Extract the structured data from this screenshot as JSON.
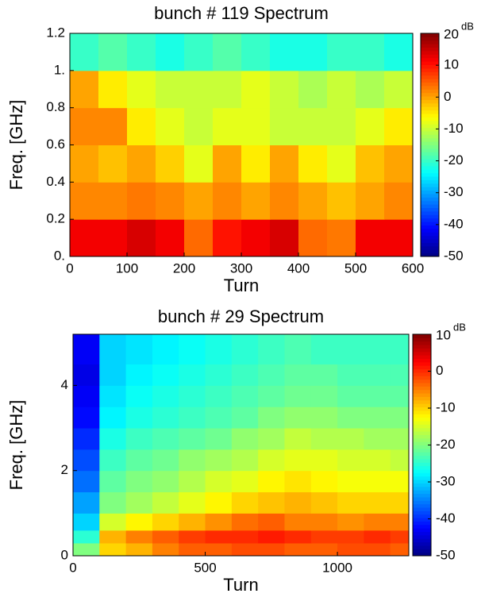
{
  "chart_data": [
    {
      "type": "heatmap",
      "title": "bunch # 119 Spectrum",
      "xlabel": "Turn",
      "ylabel": "Freq. [GHz]",
      "xlim": [
        0,
        600
      ],
      "ylim": [
        0,
        1.2
      ],
      "xticks": [
        0,
        100,
        200,
        300,
        400,
        500,
        600
      ],
      "yticks": [
        {
          "value": 0,
          "label": "0."
        },
        0.2,
        0.4,
        0.6,
        0.8,
        {
          "value": 1,
          "label": "1."
        },
        1.2
      ],
      "x_bins": [
        0,
        50,
        100,
        150,
        200,
        250,
        300,
        350,
        400,
        450,
        500,
        550,
        600
      ],
      "y_bins": [
        0,
        0.2,
        0.4,
        0.6,
        0.8,
        1.0,
        1.2
      ],
      "z": [
        [
          12,
          12,
          14,
          12,
          4,
          10,
          12,
          14,
          4,
          3,
          12,
          12
        ],
        [
          2,
          2,
          3,
          2,
          0,
          2,
          0,
          2,
          0,
          -2,
          0,
          2
        ],
        [
          0,
          -2,
          0,
          -3,
          -8,
          0,
          -5,
          0,
          -5,
          -8,
          -2,
          0
        ],
        [
          2,
          2,
          -5,
          -8,
          -10,
          -8,
          -8,
          -10,
          -10,
          -10,
          -8,
          -5
        ],
        [
          0,
          -5,
          -8,
          -10,
          -10,
          -10,
          -8,
          -10,
          -12,
          -10,
          -12,
          -10
        ],
        [
          -20,
          -18,
          -20,
          -22,
          -20,
          -18,
          -20,
          -22,
          -22,
          -20,
          -20,
          -22
        ]
      ],
      "clim": [
        -50,
        20
      ],
      "cticks": [
        20,
        10,
        0,
        -10,
        -20,
        -30,
        -40,
        -50
      ],
      "cunit": "dB"
    },
    {
      "type": "heatmap",
      "title": "bunch # 29 Spectrum",
      "xlabel": "Turn",
      "ylabel": "Freq. [GHz]",
      "xlim": [
        0,
        1270
      ],
      "ylim": [
        0,
        5.2
      ],
      "xticks": [
        0,
        500,
        1000
      ],
      "yticks": [
        0,
        2,
        4
      ],
      "x_bins": [
        0,
        100,
        200,
        300,
        400,
        500,
        600,
        700,
        800,
        900,
        1000,
        1100,
        1200,
        1270
      ],
      "y_bins": [
        0,
        0.3,
        0.6,
        1,
        1.5,
        2,
        2.5,
        3,
        3.5,
        4,
        4.5,
        5.2
      ],
      "z": [
        [
          -20,
          -10,
          -8,
          -5,
          -3,
          -3,
          -2,
          -2,
          -3,
          -3,
          -2,
          -2,
          -3
        ],
        [
          -25,
          -8,
          -5,
          -3,
          -1,
          0,
          0,
          1,
          0,
          -1,
          -1,
          0,
          -1
        ],
        [
          -30,
          -15,
          -12,
          -10,
          -8,
          -6,
          -4,
          -3,
          -5,
          -5,
          -6,
          -5,
          -5
        ],
        [
          -33,
          -20,
          -18,
          -16,
          -14,
          -12,
          -10,
          -9,
          -8,
          -9,
          -10,
          -10,
          -10
        ],
        [
          -36,
          -22,
          -20,
          -19,
          -17,
          -15,
          -14,
          -12,
          -11,
          -12,
          -13,
          -13,
          -13
        ],
        [
          -38,
          -24,
          -22,
          -21,
          -19,
          -18,
          -17,
          -15,
          -14,
          -14,
          -15,
          -15,
          -16
        ],
        [
          -40,
          -26,
          -24,
          -23,
          -22,
          -21,
          -19,
          -18,
          -16,
          -17,
          -17,
          -18,
          -18
        ],
        [
          -42,
          -28,
          -26,
          -25,
          -24,
          -23,
          -22,
          -20,
          -19,
          -19,
          -20,
          -20,
          -20
        ],
        [
          -43,
          -29,
          -27,
          -26,
          -25,
          -24,
          -23,
          -22,
          -21,
          -21,
          -22,
          -22,
          -22
        ],
        [
          -44,
          -30,
          -28,
          -27,
          -26,
          -25,
          -24,
          -23,
          -22,
          -22,
          -23,
          -23,
          -23
        ],
        [
          -43,
          -30,
          -29,
          -28,
          -27,
          -26,
          -25,
          -24,
          -23,
          -24,
          -24,
          -24,
          -24
        ]
      ],
      "clim": [
        -50,
        10
      ],
      "cticks": [
        10,
        0,
        -10,
        -20,
        -30,
        -40,
        -50
      ],
      "cunit": "dB"
    }
  ]
}
